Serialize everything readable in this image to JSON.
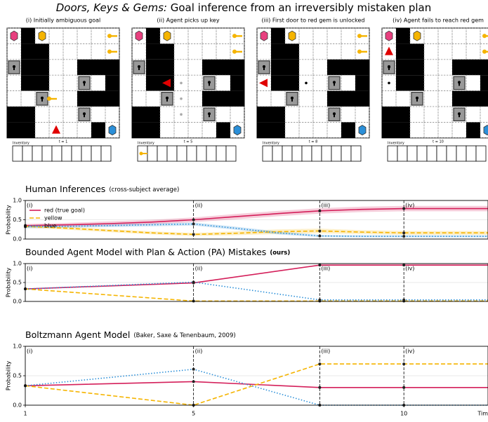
{
  "title": {
    "italic": "Doors, Keys & Gems:",
    "rest": " Goal inference from an irreversibly mistaken plan"
  },
  "panels": [
    {
      "caption": "(i) Initially ambiguous goal",
      "inventory_label": "Inventory",
      "time_label": "t = 1"
    },
    {
      "caption": "(ii) Agent picks up key",
      "inventory_label": "Inventory",
      "time_label": "t = 5"
    },
    {
      "caption": "(iii) First door to red gem is unlocked",
      "inventory_label": "Inventory",
      "time_label": "t = 8"
    },
    {
      "caption": "(iv) Agent fails to reach red gem",
      "inventory_label": "Inventory",
      "time_label": "t = 10"
    }
  ],
  "chart_data": [
    {
      "type": "line",
      "title": "Human Inferences",
      "subtitle": "(cross-subject average)",
      "subtitle_bold": false,
      "ylabel": "Probability",
      "x": [
        1,
        2,
        3,
        4,
        5,
        6,
        7,
        8,
        9,
        10,
        11,
        12
      ],
      "xlim": [
        1,
        12
      ],
      "ylim": [
        0,
        1
      ],
      "yticks": [
        {
          "value": 0,
          "label": "0.0"
        },
        {
          "value": 0.5,
          "label": "0.5"
        },
        {
          "value": 1,
          "label": "1.0"
        }
      ],
      "grid": true,
      "legend": "upper left",
      "events": [
        {
          "x": 1,
          "label": "(i)"
        },
        {
          "x": 5,
          "label": "(ii)"
        },
        {
          "x": 8,
          "label": "(iii)"
        },
        {
          "x": 10,
          "label": "(iv)"
        }
      ],
      "series": [
        {
          "name": "red (true goal)",
          "color": "#d41f5a",
          "style": "solid",
          "values": [
            0.35,
            0.37,
            0.4,
            0.44,
            0.5,
            0.58,
            0.66,
            0.73,
            0.77,
            0.79,
            0.79,
            0.79
          ],
          "lower": [
            0.31,
            0.32,
            0.34,
            0.38,
            0.44,
            0.51,
            0.59,
            0.66,
            0.7,
            0.72,
            0.72,
            0.72
          ],
          "upper": [
            0.39,
            0.42,
            0.46,
            0.5,
            0.56,
            0.65,
            0.73,
            0.8,
            0.84,
            0.86,
            0.86,
            0.86
          ]
        },
        {
          "name": "yellow",
          "color": "#f5b400",
          "style": "dashed",
          "values": [
            0.33,
            0.28,
            0.22,
            0.16,
            0.12,
            0.15,
            0.19,
            0.21,
            0.18,
            0.16,
            0.16,
            0.16
          ],
          "lower": [
            0.29,
            0.24,
            0.18,
            0.12,
            0.08,
            0.1,
            0.13,
            0.15,
            0.13,
            0.11,
            0.11,
            0.11
          ],
          "upper": [
            0.37,
            0.32,
            0.26,
            0.2,
            0.16,
            0.2,
            0.25,
            0.27,
            0.23,
            0.21,
            0.21,
            0.21
          ]
        },
        {
          "name": "blue",
          "color": "#2b8fd8",
          "style": "dotted",
          "values": [
            0.32,
            0.33,
            0.35,
            0.37,
            0.39,
            0.28,
            0.16,
            0.08,
            0.07,
            0.07,
            0.07,
            0.07
          ],
          "lower": [
            0.28,
            0.29,
            0.31,
            0.33,
            0.35,
            0.24,
            0.12,
            0.05,
            0.04,
            0.04,
            0.04,
            0.04
          ],
          "upper": [
            0.36,
            0.37,
            0.39,
            0.41,
            0.43,
            0.32,
            0.2,
            0.11,
            0.1,
            0.1,
            0.1,
            0.1
          ]
        }
      ]
    },
    {
      "type": "line",
      "title": "Bounded Agent Model with Plan & Action (PA) Mistakes",
      "subtitle": "(ours)",
      "subtitle_bold": true,
      "ylabel": "Probability",
      "x": [
        1,
        5,
        8,
        10,
        12
      ],
      "xlim": [
        1,
        12
      ],
      "ylim": [
        0,
        1
      ],
      "yticks": [
        {
          "value": 0,
          "label": "0.0"
        },
        {
          "value": 0.5,
          "label": "0.5"
        },
        {
          "value": 1,
          "label": "1.0"
        }
      ],
      "grid": true,
      "events": [
        {
          "x": 1,
          "label": "(i)"
        },
        {
          "x": 5,
          "label": "(ii)"
        },
        {
          "x": 8,
          "label": "(iii)"
        },
        {
          "x": 10,
          "label": "(iv)"
        }
      ],
      "series": [
        {
          "color": "#d41f5a",
          "style": "solid",
          "values": [
            0.33,
            0.49,
            0.96,
            0.96,
            0.96
          ]
        },
        {
          "color": "#f5b400",
          "style": "dashed",
          "values": [
            0.33,
            0.01,
            0.01,
            0.01,
            0.01
          ]
        },
        {
          "color": "#2b8fd8",
          "style": "dotted",
          "values": [
            0.33,
            0.51,
            0.04,
            0.04,
            0.04
          ]
        }
      ]
    },
    {
      "type": "line",
      "title": "Boltzmann Agent Model",
      "subtitle": "(Baker, Saxe & Tenenbaum, 2009)",
      "subtitle_bold": false,
      "ylabel": "Probability",
      "xlabel": "Tim",
      "x": [
        1,
        5,
        8,
        10,
        12
      ],
      "xlim": [
        1,
        12
      ],
      "ylim": [
        0,
        1
      ],
      "xticks": [
        1,
        5,
        10
      ],
      "yticks": [
        {
          "value": 0,
          "label": "0.0"
        },
        {
          "value": 0.5,
          "label": "0.5"
        },
        {
          "value": 1,
          "label": "1.0"
        }
      ],
      "grid": true,
      "events": [
        {
          "x": 1,
          "label": "(i)"
        },
        {
          "x": 5,
          "label": "(ii)"
        },
        {
          "x": 8,
          "label": "(iii)"
        },
        {
          "x": 10,
          "label": "(iv)"
        }
      ],
      "series": [
        {
          "color": "#d41f5a",
          "style": "solid",
          "values": [
            0.33,
            0.4,
            0.3,
            0.3,
            0.3
          ]
        },
        {
          "color": "#f5b400",
          "style": "dashed",
          "values": [
            0.33,
            0.0,
            0.7,
            0.7,
            0.7
          ]
        },
        {
          "color": "#2b8fd8",
          "style": "dotted",
          "values": [
            0.33,
            0.61,
            0.0,
            0.0,
            0.0
          ]
        }
      ]
    }
  ]
}
